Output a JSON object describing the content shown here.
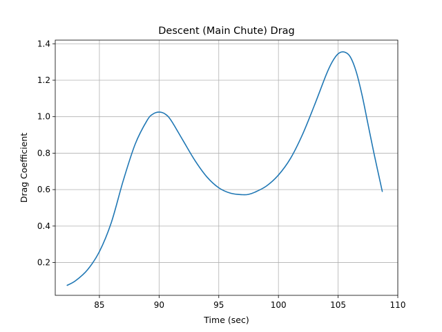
{
  "chart_data": {
    "type": "line",
    "title": "Descent (Main Chute) Drag",
    "xlabel": "Time (sec)",
    "ylabel": "Drag Coefficient",
    "xlim": [
      81.3,
      110.0
    ],
    "ylim": [
      0.02,
      1.42
    ],
    "xticks": [
      85,
      90,
      95,
      100,
      105,
      110
    ],
    "yticks": [
      0.2,
      0.4,
      0.6,
      0.8,
      1.0,
      1.2,
      1.4
    ],
    "grid": true,
    "series": [
      {
        "color": "#1f77b4",
        "x": [
          82.3,
          83.0,
          84.0,
          85.0,
          86.0,
          87.0,
          88.0,
          89.0,
          89.5,
          90.0,
          90.5,
          91.0,
          92.0,
          93.0,
          94.0,
          95.0,
          96.0,
          97.0,
          97.5,
          98.0,
          99.0,
          100.0,
          101.0,
          102.0,
          103.0,
          104.0,
          104.5,
          105.0,
          105.5,
          106.0,
          106.5,
          107.0,
          107.5,
          108.0,
          108.7
        ],
        "y": [
          0.075,
          0.1,
          0.16,
          0.26,
          0.42,
          0.65,
          0.85,
          0.98,
          1.015,
          1.025,
          1.015,
          0.98,
          0.87,
          0.76,
          0.67,
          0.61,
          0.58,
          0.572,
          0.574,
          0.585,
          0.62,
          0.68,
          0.77,
          0.9,
          1.06,
          1.23,
          1.3,
          1.345,
          1.355,
          1.33,
          1.25,
          1.12,
          0.96,
          0.8,
          0.59
        ]
      }
    ]
  }
}
